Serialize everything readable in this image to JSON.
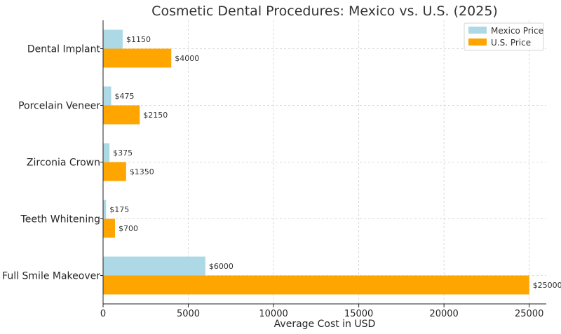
{
  "chart_data": {
    "type": "bar",
    "orientation": "horizontal",
    "title": "Cosmetic Dental Procedures: Mexico vs. U.S. (2025)",
    "xlabel": "Average Cost in USD",
    "ylabel": "",
    "xlim": [
      0,
      26000
    ],
    "xticks": [
      0,
      5000,
      10000,
      15000,
      20000,
      25000
    ],
    "categories": [
      "Dental Implant",
      "Porcelain Veneer",
      "Zirconia Crown",
      "Teeth Whitening",
      "Full Smile Makeover"
    ],
    "series": [
      {
        "name": "Mexico Price",
        "color": "#add8e6",
        "values": [
          1150,
          475,
          375,
          175,
          6000
        ],
        "labels": [
          "$1150",
          "$475",
          "$375",
          "$175",
          "$6000"
        ]
      },
      {
        "name": "U.S. Price",
        "color": "#ffa500",
        "values": [
          4000,
          2150,
          1350,
          700,
          25000
        ],
        "labels": [
          "$4000",
          "$2150",
          "$1350",
          "$700",
          "$25000"
        ]
      }
    ],
    "grid": true,
    "legend_position": "top-right"
  }
}
